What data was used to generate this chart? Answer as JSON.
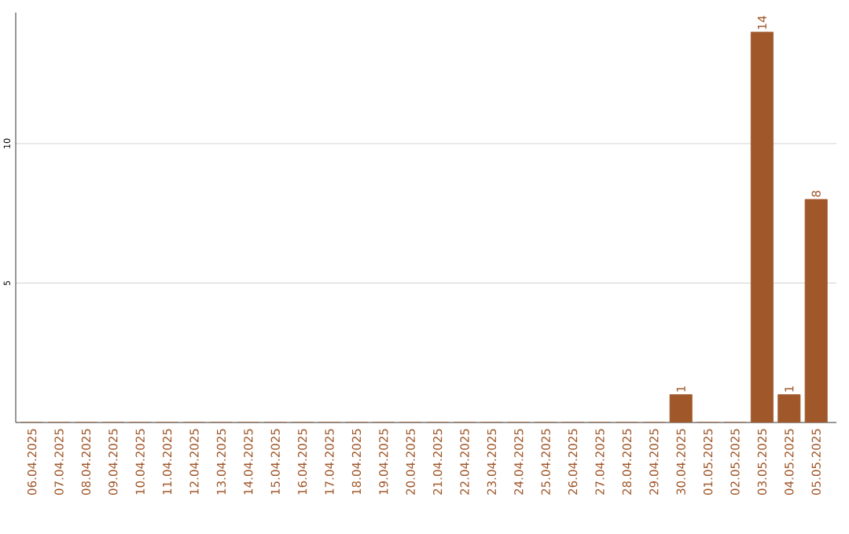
{
  "chart_data": {
    "type": "bar",
    "categories": [
      "06.04.2025",
      "07.04.2025",
      "08.04.2025",
      "09.04.2025",
      "10.04.2025",
      "11.04.2025",
      "12.04.2025",
      "13.04.2025",
      "14.04.2025",
      "15.04.2025",
      "16.04.2025",
      "17.04.2025",
      "18.04.2025",
      "19.04.2025",
      "20.04.2025",
      "21.04.2025",
      "22.04.2025",
      "23.04.2025",
      "24.04.2025",
      "25.04.2025",
      "26.04.2025",
      "27.04.2025",
      "28.04.2025",
      "29.04.2025",
      "30.04.2025",
      "01.05.2025",
      "02.05.2025",
      "03.05.2025",
      "04.05.2025",
      "05.05.2025"
    ],
    "values": [
      0,
      0,
      0,
      0,
      0,
      0,
      0,
      0,
      0,
      0,
      0,
      0,
      0,
      0,
      0,
      0,
      0,
      0,
      0,
      0,
      0,
      0,
      0,
      0,
      1,
      0,
      0,
      14,
      1,
      8
    ],
    "value_labels": [
      null,
      null,
      null,
      null,
      null,
      null,
      null,
      null,
      null,
      null,
      null,
      null,
      null,
      null,
      null,
      null,
      null,
      null,
      null,
      null,
      null,
      null,
      null,
      null,
      "1",
      null,
      null,
      "14",
      "1",
      "8"
    ],
    "color": "#a0572a",
    "ylim": [
      0,
      14.7
    ],
    "yticks": [
      5,
      10
    ],
    "grid": "y"
  }
}
